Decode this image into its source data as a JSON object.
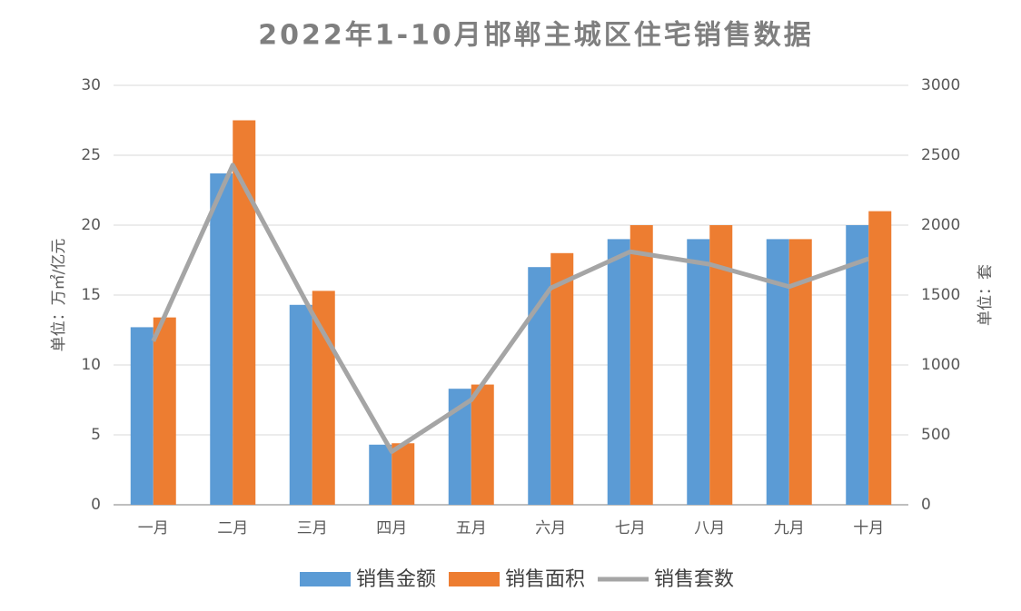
{
  "chart_data": {
    "type": "bar",
    "title": "2022年1-10月邯郸主城区住宅销售数据",
    "y_label": "单位：万㎡/亿元",
    "y2_label": "单位：套",
    "categories": [
      "一月",
      "二月",
      "三月",
      "四月",
      "五月",
      "六月",
      "七月",
      "八月",
      "九月",
      "十月"
    ],
    "series": [
      {
        "name": "销售金额",
        "color": "#5b9bd5",
        "values": [
          12.7,
          23.7,
          14.3,
          4.3,
          8.3,
          17,
          19,
          19,
          19,
          20
        ]
      },
      {
        "name": "销售面积",
        "color": "#ed7d31",
        "values": [
          13.4,
          27.5,
          15.3,
          4.4,
          8.6,
          18,
          20,
          20,
          19,
          21
        ]
      },
      {
        "name": "销售套数",
        "color": "#a5a5a5",
        "type": "line",
        "axis": "y2",
        "values": [
          1170,
          2430,
          1370,
          380,
          750,
          1550,
          1810,
          1720,
          1560,
          1760
        ]
      }
    ],
    "ylim": [
      0,
      30
    ],
    "yticks": [
      0,
      5,
      10,
      15,
      20,
      25,
      30
    ],
    "y2lim": [
      0,
      3000
    ],
    "y2ticks": [
      0,
      500,
      1000,
      1500,
      2000,
      2500,
      3000
    ],
    "grid": true,
    "legend": "bottom"
  }
}
